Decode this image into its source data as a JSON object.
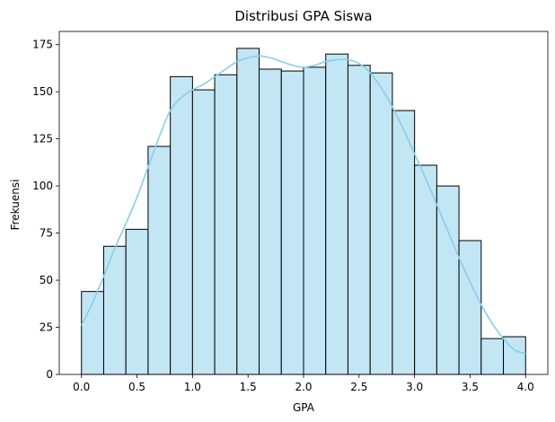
{
  "chart_data": {
    "type": "bar",
    "subtype": "histogram_with_kde",
    "title": "Distribusi GPA Siswa",
    "xlabel": "GPA",
    "ylabel": "Frekuensi",
    "xlim": [
      -0.2,
      4.2
    ],
    "ylim": [
      0,
      182
    ],
    "x_ticks": [
      0.0,
      0.5,
      1.0,
      1.5,
      2.0,
      2.5,
      3.0,
      3.5,
      4.0
    ],
    "x_tick_labels": [
      "0.0",
      "0.5",
      "1.0",
      "1.5",
      "2.0",
      "2.5",
      "3.0",
      "3.5",
      "4.0"
    ],
    "y_ticks": [
      0,
      25,
      50,
      75,
      100,
      125,
      150,
      175
    ],
    "y_tick_labels": [
      "0",
      "25",
      "50",
      "75",
      "100",
      "125",
      "150",
      "175"
    ],
    "bins": [
      {
        "x0": 0.0,
        "x1": 0.2,
        "count": 44
      },
      {
        "x0": 0.2,
        "x1": 0.4,
        "count": 68
      },
      {
        "x0": 0.4,
        "x1": 0.6,
        "count": 77
      },
      {
        "x0": 0.6,
        "x1": 0.8,
        "count": 121
      },
      {
        "x0": 0.8,
        "x1": 1.0,
        "count": 158
      },
      {
        "x0": 1.0,
        "x1": 1.2,
        "count": 151
      },
      {
        "x0": 1.2,
        "x1": 1.4,
        "count": 159
      },
      {
        "x0": 1.4,
        "x1": 1.6,
        "count": 173
      },
      {
        "x0": 1.6,
        "x1": 1.8,
        "count": 162
      },
      {
        "x0": 1.8,
        "x1": 2.0,
        "count": 161
      },
      {
        "x0": 2.0,
        "x1": 2.2,
        "count": 163
      },
      {
        "x0": 2.2,
        "x1": 2.4,
        "count": 170
      },
      {
        "x0": 2.4,
        "x1": 2.6,
        "count": 164
      },
      {
        "x0": 2.6,
        "x1": 2.8,
        "count": 160
      },
      {
        "x0": 2.8,
        "x1": 3.0,
        "count": 140
      },
      {
        "x0": 3.0,
        "x1": 3.2,
        "count": 111
      },
      {
        "x0": 3.2,
        "x1": 3.4,
        "count": 100
      },
      {
        "x0": 3.4,
        "x1": 3.6,
        "count": 71
      },
      {
        "x0": 3.6,
        "x1": 3.8,
        "count": 19
      },
      {
        "x0": 3.8,
        "x1": 4.0,
        "count": 20
      }
    ],
    "kde": {
      "x": [
        0.0,
        0.1,
        0.2,
        0.3,
        0.4,
        0.5,
        0.6,
        0.7,
        0.8,
        0.9,
        1.0,
        1.1,
        1.2,
        1.3,
        1.4,
        1.5,
        1.6,
        1.7,
        1.8,
        1.9,
        2.0,
        2.1,
        2.2,
        2.3,
        2.4,
        2.5,
        2.6,
        2.7,
        2.8,
        2.9,
        3.0,
        3.1,
        3.2,
        3.3,
        3.4,
        3.5,
        3.6,
        3.7,
        3.8,
        3.9,
        4.0
      ],
      "y": [
        26,
        38,
        52,
        67,
        80,
        94,
        110,
        126,
        140,
        147,
        151,
        154,
        158,
        162,
        166,
        168,
        169,
        168,
        166,
        164,
        163,
        164,
        166,
        167,
        167,
        165,
        160,
        152,
        142,
        130,
        117,
        104,
        90,
        76,
        62,
        49,
        37,
        27,
        19,
        13,
        11
      ]
    },
    "bar_fill": "#c3e6f5",
    "bar_edge": "#000000",
    "kde_color": "#87ceeb",
    "grid": false
  }
}
